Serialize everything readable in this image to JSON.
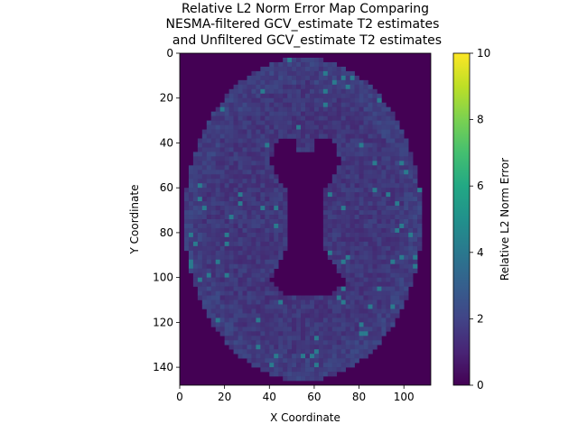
{
  "chart_data": {
    "type": "heatmap",
    "title": [
      "Relative L2 Norm Error Map Comparing",
      "NESMA-filtered GCV_estimate T2 estimates",
      "and Unfiltered GCV_estimate T2 estimates"
    ],
    "xlabel": "X Coordinate",
    "ylabel": "Y Coordinate",
    "xlim": [
      0,
      112
    ],
    "ylim": [
      148,
      0
    ],
    "x_ticks": [
      "0",
      "20",
      "40",
      "60",
      "80",
      "100"
    ],
    "y_ticks": [
      "0",
      "20",
      "40",
      "60",
      "80",
      "100",
      "120",
      "140"
    ],
    "colorbar": {
      "label": "Relative L2 Norm Error",
      "range": [
        0,
        10
      ],
      "ticks": [
        "0",
        "2",
        "4",
        "6",
        "8",
        "10"
      ],
      "colormap": "viridis"
    },
    "colors": {
      "background": "#440154",
      "tissue_low": "#46226e",
      "tissue_high": "#3a538b",
      "hotspot": "#2a7b8e"
    },
    "grid": false
  }
}
